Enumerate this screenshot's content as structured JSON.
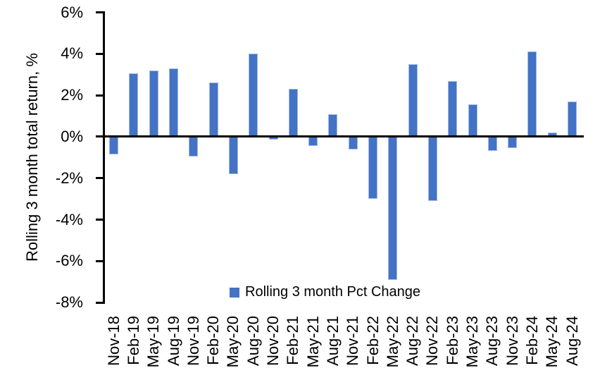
{
  "chart_data": {
    "type": "bar",
    "title": "",
    "xlabel": "",
    "ylabel": "Rolling 3 month total return, %",
    "ylim": [
      -8,
      6
    ],
    "ytick_step": 2,
    "ytick_labels": [
      "6%",
      "4%",
      "2%",
      "0%",
      "-2%",
      "-4%",
      "-6%",
      "-8%"
    ],
    "grid": false,
    "legend_position": "bottom-center-inside",
    "categories": [
      "Nov-18",
      "Feb-19",
      "May-19",
      "Aug-19",
      "Nov-19",
      "Feb-20",
      "May-20",
      "Aug-20",
      "Nov-20",
      "Feb-21",
      "May-21",
      "Aug-21",
      "Nov-21",
      "Feb-22",
      "May-22",
      "Aug-22",
      "Nov-22",
      "Feb-23",
      "May-23",
      "Aug-23",
      "Nov-23",
      "Feb-24",
      "May-24",
      "Aug-24"
    ],
    "series": [
      {
        "name": "Rolling 3 month Pct Change",
        "color": "#4472C4",
        "values": [
          -0.85,
          3.05,
          3.2,
          3.3,
          -0.95,
          2.6,
          -1.8,
          4.0,
          -0.15,
          2.3,
          -0.45,
          1.1,
          -0.6,
          -3.0,
          -6.9,
          3.5,
          -3.1,
          2.7,
          1.55,
          -0.7,
          -0.55,
          4.1,
          0.2,
          1.7
        ]
      }
    ],
    "legend": [
      {
        "label": "Rolling 3 month Pct Change",
        "color": "#4472C4"
      }
    ]
  },
  "colors": {
    "bar": "#4472C4",
    "bar_edge": "#9FBAE6",
    "axis": "#000000",
    "text": "#000000",
    "background": "#FFFFFF"
  }
}
